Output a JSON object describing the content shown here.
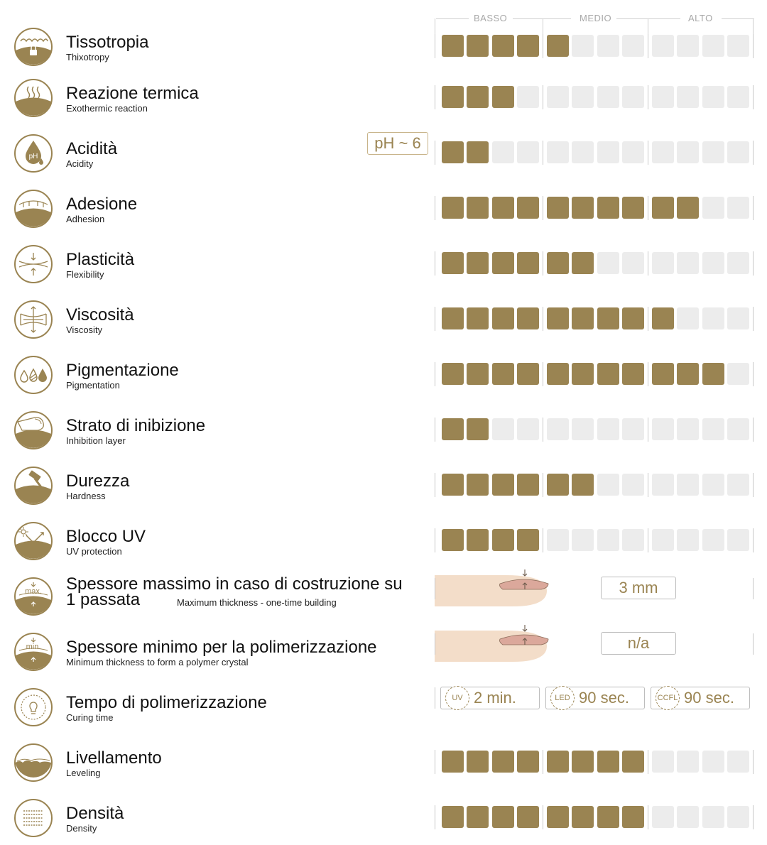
{
  "levels": {
    "low": "BASSO",
    "mid": "MEDIO",
    "high": "ALTO"
  },
  "colors": {
    "accent": "#9a8452",
    "inactive": "#ececec",
    "text": "#111111"
  },
  "segments_total": 12,
  "rows": [
    {
      "title": "Tissotropia",
      "subtitle": "Thixotropy",
      "icon": "thixotropy-lock-icon",
      "level": 5
    },
    {
      "title": "Reazione termica",
      "subtitle": "Exothermic reaction",
      "icon": "heat-waves-icon",
      "level": 3
    },
    {
      "title": "Acidità",
      "subtitle": "Acidity",
      "icon": "ph-drop-icon",
      "level": 2,
      "badge": "pH ~ 6"
    },
    {
      "title": "Adesione",
      "subtitle": "Adhesion",
      "icon": "adhesion-arrows-icon",
      "level": 10
    },
    {
      "title": "Plasticità",
      "subtitle": "Flexibility",
      "icon": "flexibility-arrows-icon",
      "level": 6
    },
    {
      "title": "Viscosità",
      "subtitle": "Viscosity",
      "icon": "viscosity-arrows-icon",
      "level": 9
    },
    {
      "title": "Pigmentazione",
      "subtitle": "Pigmentation",
      "icon": "pigment-drops-icon",
      "level": 11
    },
    {
      "title": "Strato di inibizione",
      "subtitle": "Inhibition layer",
      "icon": "finger-layer-icon",
      "level": 2
    },
    {
      "title": "Durezza",
      "subtitle": "Hardness",
      "icon": "hammer-icon",
      "level": 6
    },
    {
      "title": "Blocco UV",
      "subtitle": "UV protection",
      "icon": "uv-sun-arrow-icon",
      "level": 4
    },
    {
      "title": "Spessore massimo in caso di costruzione su 1 passata",
      "subtitle": "Maximum thickness - one-time building",
      "icon": "max-thickness-icon",
      "value": "3 mm",
      "icon_label": "max."
    },
    {
      "title": "Spessore minimo per la polimerizzazione",
      "subtitle": "Minimum thickness to form a polymer crystal",
      "icon": "min-thickness-icon",
      "value": "n/a",
      "icon_label": "min."
    },
    {
      "title": "Tempo di polimerizzazione",
      "subtitle": "Curing time",
      "icon": "curing-lamp-icon",
      "curing": [
        {
          "lamp": "UV",
          "time": "2 min."
        },
        {
          "lamp": "LED",
          "time": "90 sec."
        },
        {
          "lamp": "CCFL",
          "time": "90 sec."
        }
      ]
    },
    {
      "title": "Livellamento",
      "subtitle": "Leveling",
      "icon": "leveling-surface-icon",
      "level": 8
    },
    {
      "title": "Densità",
      "subtitle": "Density",
      "icon": "density-grid-icon",
      "level": 8
    }
  ]
}
